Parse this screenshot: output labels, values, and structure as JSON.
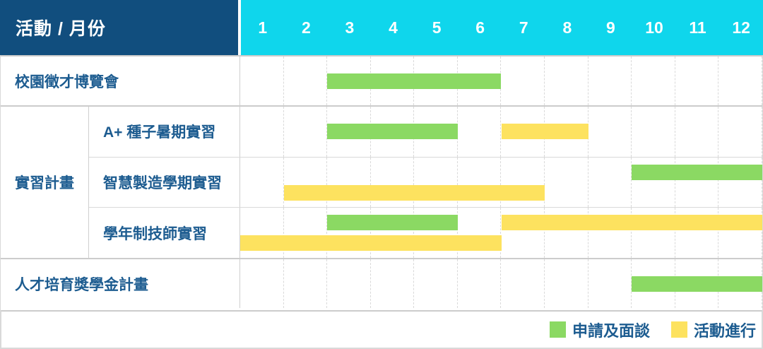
{
  "header": {
    "corner_label": "活動 / 月份",
    "months": [
      "1",
      "2",
      "3",
      "4",
      "5",
      "6",
      "7",
      "8",
      "9",
      "10",
      "11",
      "12"
    ]
  },
  "colors": {
    "navy": "#114E7E",
    "cyan": "#0FD6EC",
    "apply_green": "#8BD963",
    "activity_yellow": "#FDE25F",
    "label_text": "#1D5C90"
  },
  "legend": [
    {
      "label": "申請及面談",
      "type": "apply"
    },
    {
      "label": "活動進行",
      "type": "activity"
    }
  ],
  "chart_data": {
    "type": "gantt",
    "unit": "month",
    "x_domain": [
      1,
      12
    ],
    "x_ticks": [
      1,
      2,
      3,
      4,
      5,
      6,
      7,
      8,
      9,
      10,
      11,
      12
    ],
    "bar_types": {
      "apply": {
        "label": "申請及面談",
        "color": "#8BD963"
      },
      "activity": {
        "label": "活動進行",
        "color": "#FDE25F"
      }
    },
    "rows": [
      {
        "label": "校園徵才博覽會",
        "lanes": [
          [
            {
              "type": "apply",
              "start_month": 3,
              "end_month": 6
            }
          ]
        ]
      },
      {
        "group_label": "實習計畫",
        "children": [
          {
            "label": "A+ 種子暑期實習",
            "lanes": [
              [
                {
                  "type": "apply",
                  "start_month": 3,
                  "end_month": 5
                },
                {
                  "type": "activity",
                  "start_month": 7,
                  "end_month": 8
                }
              ]
            ]
          },
          {
            "label": "智慧製造學期實習",
            "lanes": [
              [
                {
                  "type": "apply",
                  "start_month": 10,
                  "end_month": 12
                }
              ],
              [
                {
                  "type": "activity",
                  "start_month": 2,
                  "end_month": 7
                }
              ]
            ]
          },
          {
            "label": "學年制技師實習",
            "lanes": [
              [
                {
                  "type": "apply",
                  "start_month": 3,
                  "end_month": 5
                },
                {
                  "type": "activity",
                  "start_month": 7,
                  "end_month": 12
                }
              ],
              [
                {
                  "type": "activity",
                  "start_month": 1,
                  "end_month": 6
                }
              ]
            ]
          }
        ]
      },
      {
        "label": "人才培育獎學金計畫",
        "lanes": [
          [
            {
              "type": "apply",
              "start_month": 10,
              "end_month": 12
            }
          ]
        ]
      }
    ]
  }
}
